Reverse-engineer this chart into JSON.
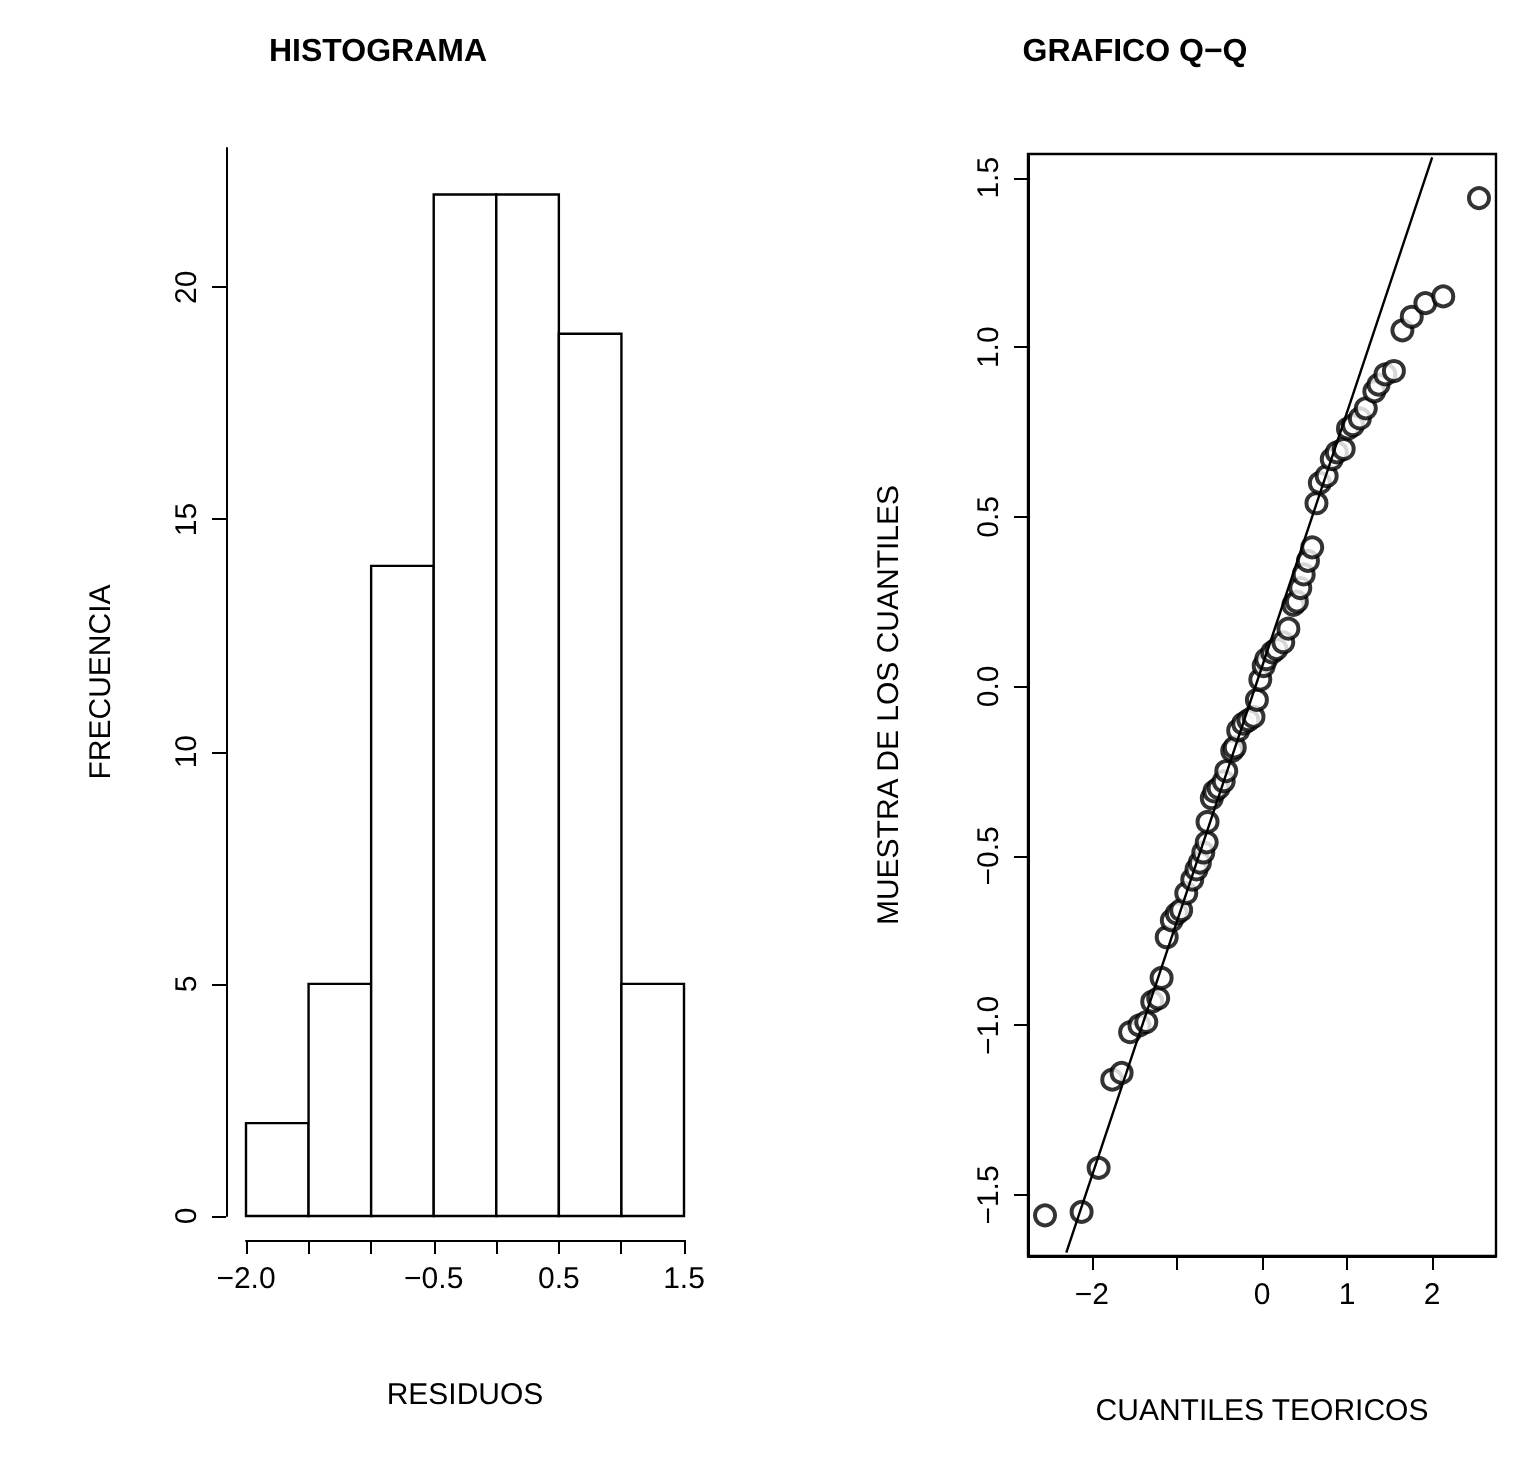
{
  "chart_data": [
    {
      "type": "histogram",
      "title": "HISTOGRAMA",
      "xlabel": "RESIDUOS",
      "ylabel": "FRECUENCIA",
      "bins": [
        -2.0,
        -1.5,
        -1.0,
        -0.5,
        0.0,
        0.5,
        1.0,
        1.5
      ],
      "values": [
        2,
        5,
        14,
        22,
        22,
        19,
        5
      ],
      "color": "#ffffff",
      "xlim": [
        -2.0,
        1.5
      ],
      "ylim": [
        0,
        23
      ],
      "xticks": [
        {
          "value": -2.0,
          "label": "−2.0"
        },
        {
          "value": -1.5,
          "label": null
        },
        {
          "value": -1.0,
          "label": null
        },
        {
          "value": -0.5,
          "label": "−0.5"
        },
        {
          "value": 0.0,
          "label": null
        },
        {
          "value": 0.5,
          "label": "0.5"
        },
        {
          "value": 1.0,
          "label": null
        },
        {
          "value": 1.5,
          "label": "1.5"
        }
      ],
      "yticks": [
        0,
        5,
        10,
        15,
        20
      ]
    },
    {
      "type": "scatter",
      "title": "GRAFICO Q−Q",
      "xlabel": "CUANTILES TEORICOS",
      "ylabel": "MUESTRA DE LOS CUANTILES",
      "xlim": [
        -2.75,
        2.75
      ],
      "ylim": [
        -1.68,
        1.57
      ],
      "xticks": [
        {
          "value": -2,
          "label": "−2"
        },
        {
          "value": -1,
          "label": null
        },
        {
          "value": 0,
          "label": "0"
        },
        {
          "value": 1,
          "label": "1"
        },
        {
          "value": 2,
          "label": "2"
        }
      ],
      "yticks": [
        {
          "value": -1.5,
          "label": "−1.5"
        },
        {
          "value": -1.0,
          "label": "−1.0"
        },
        {
          "value": -0.5,
          "label": "−0.5"
        },
        {
          "value": 0.0,
          "label": "0.0"
        },
        {
          "value": 0.5,
          "label": "0.5"
        },
        {
          "value": 1.0,
          "label": "1.0"
        },
        {
          "value": 1.5,
          "label": "1.5"
        }
      ],
      "series": [
        {
          "type": "scatter",
          "color": "#000000",
          "marker": "circle",
          "x": [
            -2.55,
            -2.12,
            -1.92,
            -1.76,
            -1.65,
            -1.55,
            -1.44,
            -1.36,
            -1.29,
            -1.22,
            -1.18,
            -1.12,
            -1.06,
            -1.0,
            -0.95,
            -0.89,
            -0.82,
            -0.77,
            -0.73,
            -0.69,
            -0.65,
            -0.64,
            -0.59,
            -0.56,
            -0.51,
            -0.45,
            -0.42,
            -0.35,
            -0.32,
            -0.28,
            -0.22,
            -0.16,
            -0.1,
            -0.06,
            -0.02,
            0.02,
            0.05,
            0.12,
            0.17,
            0.25,
            0.31,
            0.37,
            0.41,
            0.45,
            0.49,
            0.54,
            0.59,
            0.64,
            0.68,
            0.76,
            0.82,
            0.88,
            0.96,
            1.01,
            1.07,
            1.15,
            1.22,
            1.32,
            1.37,
            1.45,
            1.55,
            1.65,
            1.76,
            1.92,
            2.13,
            2.55
          ],
          "values": [
            -1.56,
            -1.55,
            -1.42,
            -1.16,
            -1.14,
            -1.02,
            -1.0,
            -0.99,
            -0.93,
            -0.92,
            -0.86,
            -0.74,
            -0.69,
            -0.67,
            -0.66,
            -0.61,
            -0.57,
            -0.54,
            -0.52,
            -0.49,
            -0.46,
            -0.4,
            -0.33,
            -0.31,
            -0.3,
            -0.28,
            -0.25,
            -0.19,
            -0.18,
            -0.13,
            -0.11,
            -0.1,
            -0.09,
            -0.04,
            0.02,
            0.06,
            0.08,
            0.1,
            0.11,
            0.13,
            0.17,
            0.24,
            0.25,
            0.29,
            0.33,
            0.37,
            0.41,
            0.54,
            0.6,
            0.62,
            0.67,
            0.69,
            0.7,
            0.76,
            0.77,
            0.79,
            0.82,
            0.87,
            0.89,
            0.92,
            0.93,
            1.05,
            1.09,
            1.13,
            1.15,
            1.44
          ]
        },
        {
          "type": "line",
          "color": "#000000",
          "marker": "none",
          "line_style": "solid",
          "x": [
            -2.3,
            2.0
          ],
          "values": [
            -1.67,
            1.56
          ]
        }
      ]
    }
  ]
}
